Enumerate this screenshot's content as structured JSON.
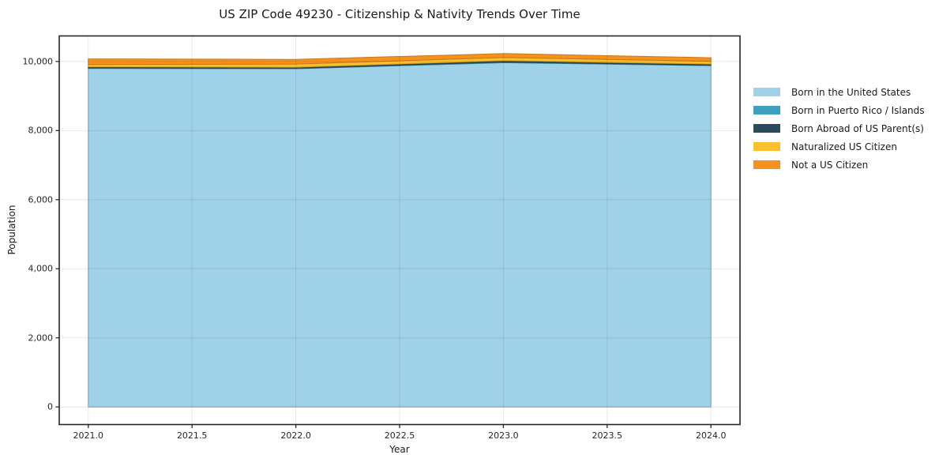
{
  "chart_data": {
    "type": "area",
    "stacked": true,
    "title": "US ZIP Code 49230 - Citizenship & Nativity Trends Over Time",
    "xlabel": "Year",
    "ylabel": "Population",
    "x": [
      2021,
      2022,
      2023,
      2024
    ],
    "series": [
      {
        "name": "Born in the United States",
        "color": "#9FD1E8",
        "values": [
          9800,
          9790,
          9965,
          9880
        ]
      },
      {
        "name": "Born in Puerto Rico / Islands",
        "color": "#3EA0BE",
        "values": [
          15,
          15,
          20,
          15
        ]
      },
      {
        "name": "Born Abroad of US Parent(s)",
        "color": "#2B4A5C",
        "values": [
          30,
          30,
          40,
          30
        ]
      },
      {
        "name": "Naturalized US Citizen",
        "color": "#FBC02D",
        "values": [
          70,
          90,
          90,
          80
        ]
      },
      {
        "name": "Not a US Citizen",
        "color": "#F5911E",
        "values": [
          160,
          135,
          115,
          105
        ]
      }
    ],
    "x_ticks": [
      "2021.0",
      "2021.5",
      "2022.0",
      "2022.5",
      "2023.0",
      "2023.5",
      "2024.0"
    ],
    "x_tick_values": [
      2021,
      2021.5,
      2022,
      2022.5,
      2023,
      2023.5,
      2024
    ],
    "y_ticks": [
      "0",
      "2,000",
      "4,000",
      "6,000",
      "8,000",
      "10,000"
    ],
    "y_tick_values": [
      0,
      2000,
      4000,
      6000,
      8000,
      10000
    ],
    "xlim": [
      2020.86,
      2024.14
    ],
    "ylim": [
      -510,
      10740
    ],
    "grid": true,
    "grid_color": "#e8e8e8",
    "axis_color": "#262626",
    "legend_position": "right-outside"
  }
}
